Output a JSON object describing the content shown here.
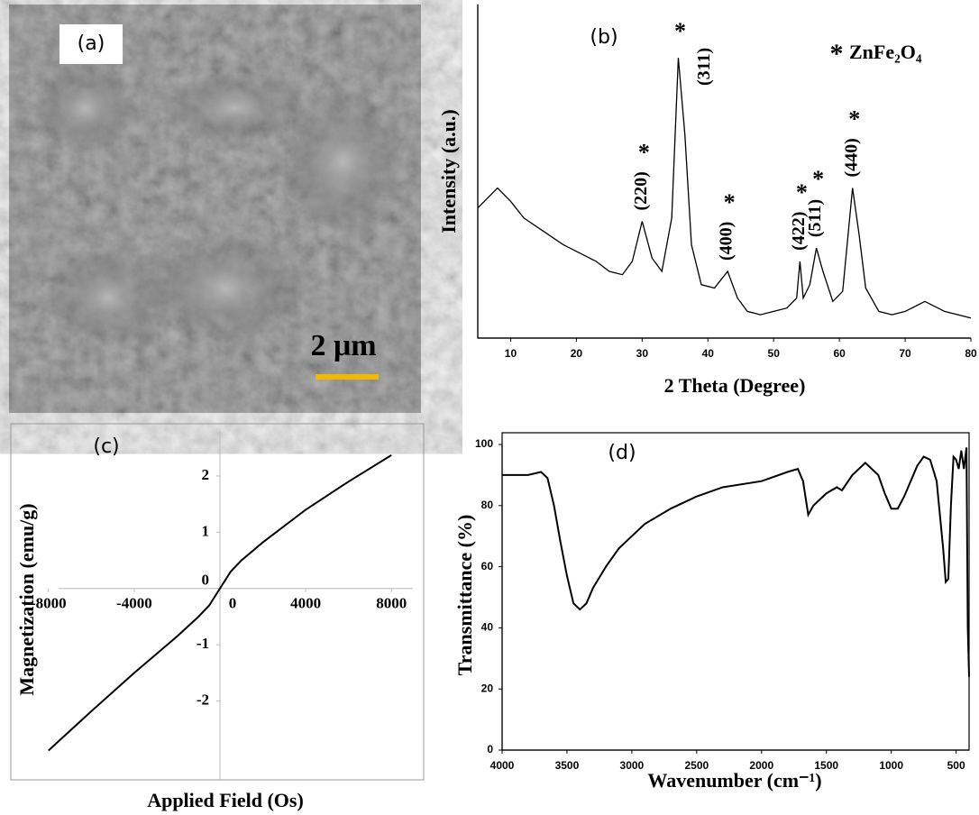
{
  "chart_data": [
    {
      "type": "image",
      "panel_label": "(a)",
      "scale_bar_label": "2 μm",
      "scale_bar_color": "#f5b800"
    },
    {
      "type": "line",
      "panel_label": "(b)",
      "x_label": "2 Theta (Degree)",
      "y_label": "Intensity (a.u.)",
      "x": [
        5,
        8,
        10,
        12,
        15,
        18,
        20,
        23,
        25,
        27,
        28.5,
        30,
        31.5,
        33,
        34.5,
        35.5,
        36.5,
        37.5,
        39,
        41,
        43,
        44.5,
        46,
        48,
        50,
        52,
        53.5,
        54,
        54.5,
        55.5,
        56.5,
        57.5,
        59,
        60.5,
        62,
        63,
        64,
        66,
        68,
        70,
        73,
        76,
        80
      ],
      "series": [
        {
          "name": "ZnFe₂O₄",
          "color": "#000000",
          "values": [
            39,
            45,
            41,
            36,
            32,
            28,
            26,
            23,
            20,
            19,
            23,
            35,
            24,
            20,
            36,
            84,
            61,
            28,
            16,
            15,
            20,
            12,
            8,
            7,
            8,
            9,
            12,
            23,
            12,
            16,
            27,
            20,
            11,
            14,
            45,
            31,
            15,
            8,
            7,
            8,
            11,
            8,
            6
          ]
        }
      ],
      "xlim": [
        5,
        80
      ],
      "xticks": [
        10,
        20,
        30,
        40,
        50,
        60,
        70,
        80
      ],
      "ylim": [
        0,
        100
      ],
      "peak_marker": "*",
      "annotations": [
        {
          "text": "(220)",
          "x": 30
        },
        {
          "text": "(311)",
          "x": 35.5
        },
        {
          "text": "(400)",
          "x": 43
        },
        {
          "text": "(422)",
          "x": 54
        },
        {
          "text": "(511)",
          "x": 56.5
        },
        {
          "text": "(440)",
          "x": 62
        }
      ]
    },
    {
      "type": "line",
      "panel_label": "(c)",
      "x_label": "Applied Field (Os)",
      "y_label": "Magnetization (emu/g)",
      "x": [
        -8000,
        -6000,
        -4000,
        -2000,
        -1000,
        -500,
        0,
        500,
        1000,
        2000,
        4000,
        6000,
        8000
      ],
      "values": [
        -2.88,
        -2.18,
        -1.5,
        -0.85,
        -0.5,
        -0.3,
        0,
        0.3,
        0.5,
        0.82,
        1.4,
        1.9,
        2.37
      ],
      "color": "#000000",
      "xlim": [
        -9000,
        9000
      ],
      "xticks": [
        -8000,
        -4000,
        0,
        4000,
        8000
      ],
      "ylim": [
        -3.4,
        2.8
      ],
      "yticks": [
        -2,
        -1,
        0,
        1,
        2
      ],
      "axes_cross_at_zero": true
    },
    {
      "type": "line",
      "panel_label": "(d)",
      "x_label": "Wavenumber (cm⁻¹)",
      "y_label": "Transmittance (%)",
      "x": [
        4000,
        3800,
        3700,
        3650,
        3600,
        3550,
        3500,
        3450,
        3400,
        3350,
        3300,
        3200,
        3100,
        3000,
        2900,
        2700,
        2500,
        2300,
        2000,
        1800,
        1720,
        1680,
        1640,
        1600,
        1500,
        1420,
        1380,
        1300,
        1200,
        1100,
        1050,
        1000,
        950,
        900,
        800,
        750,
        700,
        650,
        600,
        580,
        560,
        540,
        520,
        500,
        480,
        460,
        440,
        420,
        410,
        400
      ],
      "values": [
        90,
        90,
        91,
        89,
        80,
        68,
        57,
        48,
        46,
        48,
        53,
        60,
        66,
        70,
        74,
        79,
        83,
        86,
        88,
        91,
        92,
        88,
        77,
        80,
        84,
        86,
        85,
        90,
        94,
        90,
        84,
        79,
        79,
        83,
        93,
        96,
        95,
        88,
        66,
        55,
        56,
        80,
        96,
        95,
        92,
        98,
        92,
        99,
        40,
        24
      ],
      "color": "#000000",
      "xlim": [
        4000,
        400
      ],
      "xticks": [
        4000,
        3500,
        3000,
        2500,
        2000,
        1500,
        1000,
        500
      ],
      "ylim": [
        0,
        100
      ],
      "yticks": [
        0,
        20,
        40,
        60,
        80,
        100
      ]
    }
  ]
}
